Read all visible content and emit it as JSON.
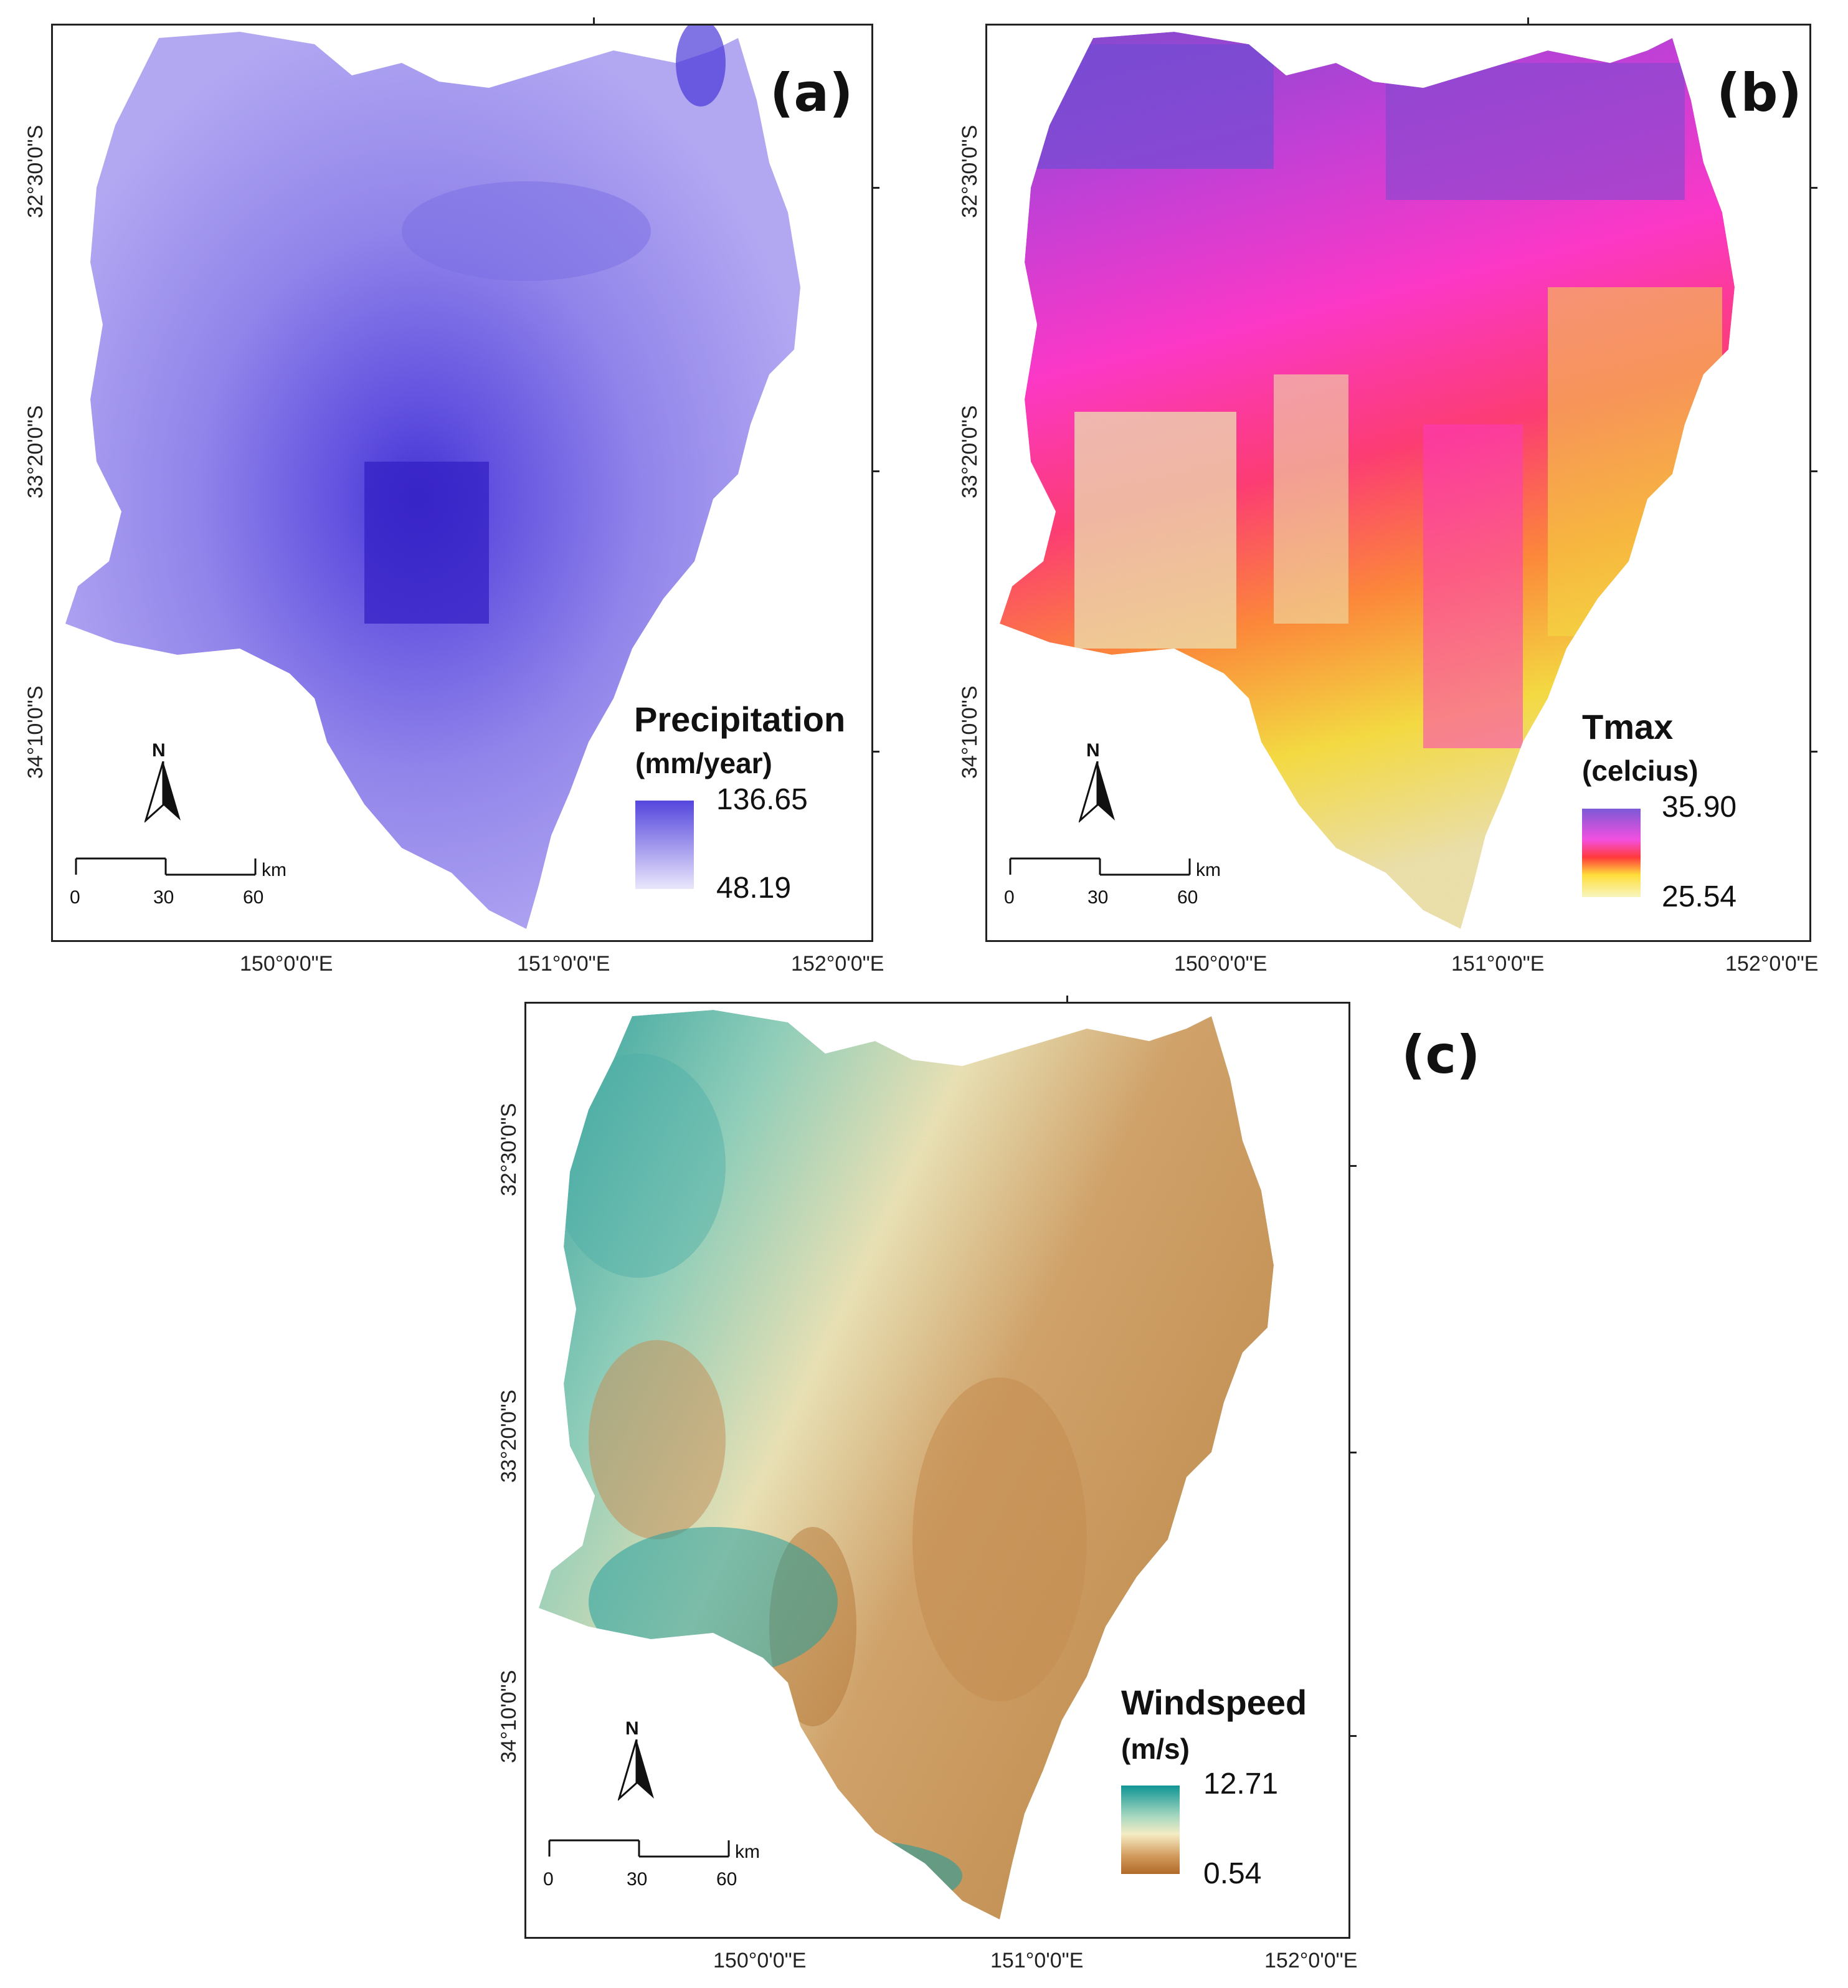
{
  "panels": [
    {
      "label": "(a)",
      "legend_title": "Precipitation",
      "legend_unit": "(mm/year)",
      "legend_max": "136.65",
      "legend_min": "48.19",
      "colors": [
        "#3b2ad0",
        "#7b6ae6",
        "#a79cf0",
        "#d6d0f7"
      ],
      "ramp": [
        "#5546dd",
        "#e9e6fb"
      ]
    },
    {
      "label": "(b)",
      "legend_title": "Tmax",
      "legend_unit": "(celcius)",
      "legend_max": "35.90",
      "legend_min": "25.54",
      "colors": [
        "#7a4ad0",
        "#ee2fcf",
        "#ff3b7a",
        "#ff7a3a",
        "#f3e43a",
        "#eee9b8"
      ],
      "ramp": [
        "#7c5ad6",
        "#f34fe0",
        "#ff3a3a",
        "#ffde3a",
        "#f8f5c0"
      ]
    },
    {
      "label": "(c)",
      "legend_title": "Windspeed",
      "legend_unit": "(m/s)",
      "legend_max": "12.71",
      "legend_min": "0.54",
      "colors": [
        "#1a9a9a",
        "#6cc4b4",
        "#f2e8b8",
        "#d9a66a",
        "#b8722e"
      ],
      "ramp": [
        "#109595",
        "#a8d8c0",
        "#f5ecc4",
        "#d29a5c",
        "#b06a28"
      ]
    }
  ],
  "lat_labels": [
    "32°30'0\"S",
    "33°20'0\"S",
    "34°10'0\"S"
  ],
  "lon_labels": [
    "150°0'0\"E",
    "151°0'0\"E",
    "152°0'0\"E"
  ],
  "north_label": "N",
  "scale_unit": "km",
  "scale_ticks": [
    "0",
    "30",
    "60"
  ],
  "icons": [
    "north-arrow-icon",
    "scale-bar-icon"
  ]
}
